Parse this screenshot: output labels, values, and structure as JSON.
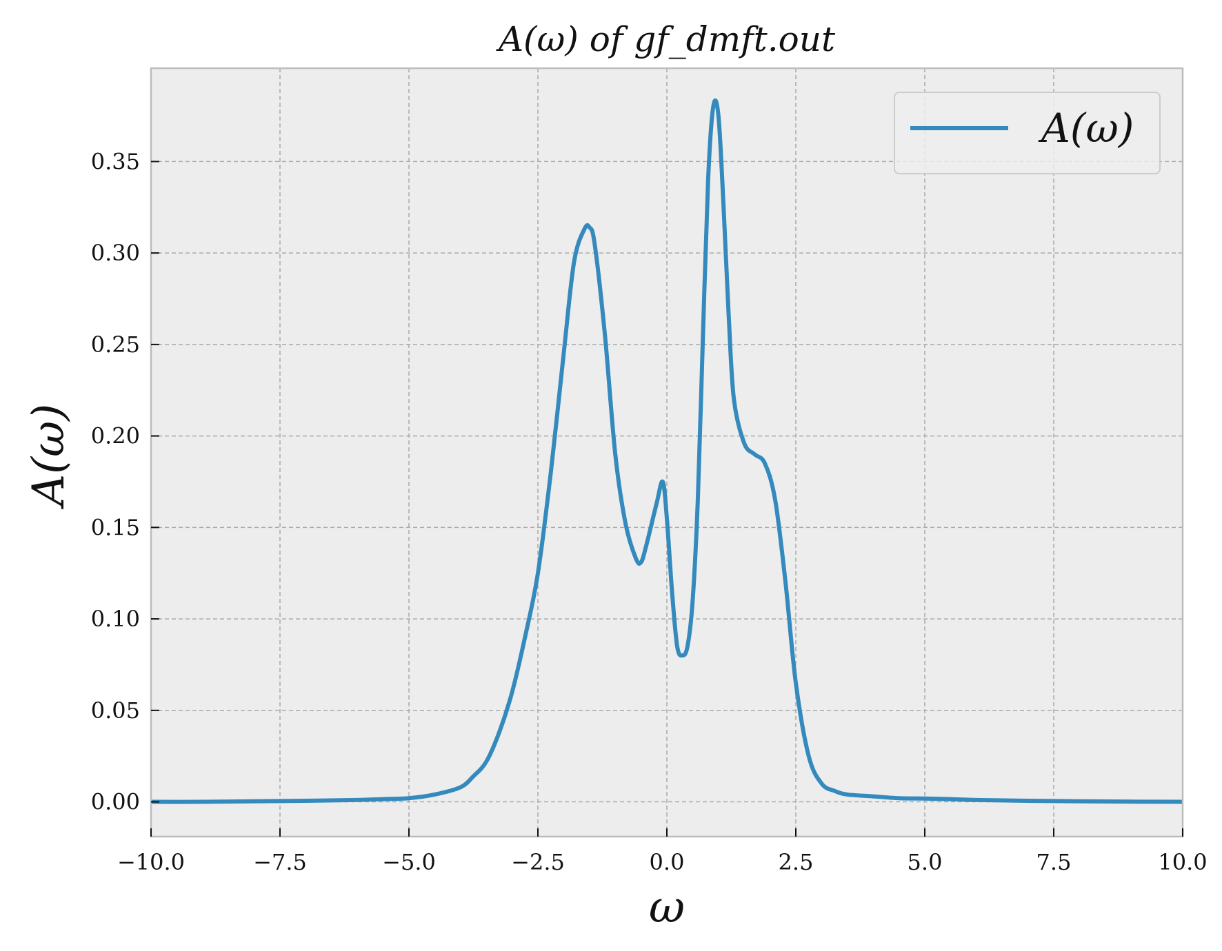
{
  "chart_data": {
    "type": "line",
    "title": "A(ω) of gf_dmft.out",
    "xlabel": "ω",
    "ylabel": "A(ω)",
    "xlim": [
      -10.0,
      10.0
    ],
    "ylim": [
      -0.019,
      0.401
    ],
    "xticks": [
      -10.0,
      -7.5,
      -5.0,
      -2.5,
      0.0,
      2.5,
      5.0,
      7.5,
      10.0
    ],
    "xtick_labels": [
      "−10.0",
      "−7.5",
      "−5.0",
      "−2.5",
      "0.0",
      "2.5",
      "5.0",
      "7.5",
      "10.0"
    ],
    "yticks": [
      0.0,
      0.05,
      0.1,
      0.15,
      0.2,
      0.25,
      0.3,
      0.35
    ],
    "ytick_labels": [
      "0.00",
      "0.05",
      "0.10",
      "0.15",
      "0.20",
      "0.25",
      "0.30",
      "0.35"
    ],
    "grid": true,
    "legend_position": "top-right",
    "colors": {
      "series": "#348ABD",
      "plot_background": "#EDEDEE",
      "grid": "#AAAAAA",
      "spine": "#BCBCBC"
    },
    "series": [
      {
        "name": "A(ω)",
        "x": [
          -10.0,
          -9.0,
          -8.0,
          -7.0,
          -6.0,
          -5.5,
          -5.0,
          -4.5,
          -4.0,
          -3.75,
          -3.5,
          -3.25,
          -3.0,
          -2.75,
          -2.5,
          -2.25,
          -2.0,
          -1.8,
          -1.6,
          -1.5,
          -1.4,
          -1.2,
          -1.0,
          -0.8,
          -0.6,
          -0.5,
          -0.4,
          -0.2,
          -0.08,
          0.0,
          0.1,
          0.2,
          0.3,
          0.4,
          0.5,
          0.6,
          0.7,
          0.8,
          0.9,
          1.0,
          1.1,
          1.2,
          1.3,
          1.5,
          1.7,
          1.9,
          2.1,
          2.3,
          2.5,
          2.75,
          3.0,
          3.25,
          3.5,
          4.0,
          4.5,
          5.0,
          5.5,
          6.0,
          7.0,
          8.0,
          9.0,
          10.0
        ],
        "values": [
          0.0,
          0.0,
          0.0003,
          0.0006,
          0.001,
          0.0015,
          0.002,
          0.004,
          0.008,
          0.014,
          0.022,
          0.038,
          0.06,
          0.09,
          0.125,
          0.18,
          0.245,
          0.295,
          0.313,
          0.314,
          0.305,
          0.255,
          0.19,
          0.152,
          0.133,
          0.131,
          0.14,
          0.163,
          0.175,
          0.155,
          0.115,
          0.085,
          0.08,
          0.085,
          0.11,
          0.165,
          0.255,
          0.34,
          0.38,
          0.375,
          0.325,
          0.265,
          0.22,
          0.196,
          0.19,
          0.185,
          0.165,
          0.12,
          0.065,
          0.025,
          0.01,
          0.006,
          0.004,
          0.003,
          0.002,
          0.0018,
          0.0015,
          0.001,
          0.0006,
          0.0003,
          0.0001,
          0.0
        ]
      }
    ]
  }
}
